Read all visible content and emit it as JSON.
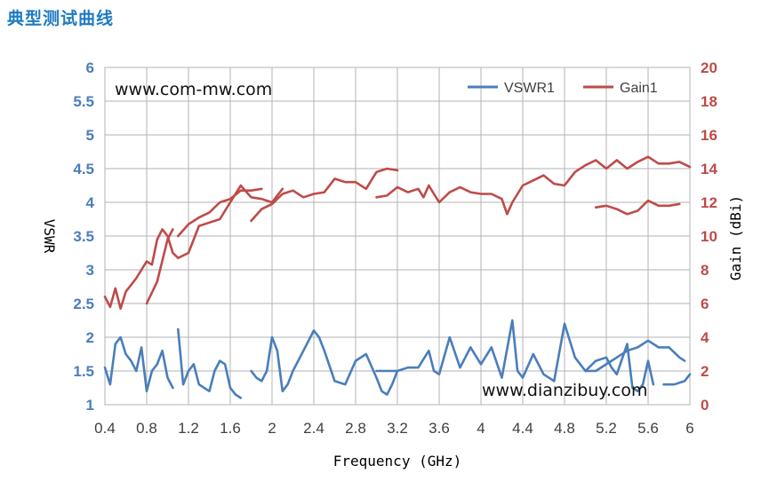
{
  "page": {
    "title": "典型测试曲线"
  },
  "chart_data": {
    "type": "line",
    "title": "",
    "xlabel": "Frequency (GHz)",
    "ylabel": "VSWR",
    "y2label": "Gain (dBi)",
    "xlim": [
      0.4,
      6
    ],
    "ylim": [
      1,
      6
    ],
    "y2lim": [
      0,
      20
    ],
    "x_ticks": [
      "0.4",
      "0.8",
      "1.2",
      "1.6",
      "2",
      "2.4",
      "2.8",
      "3.2",
      "3.6",
      "4",
      "4.4",
      "4.8",
      "5.2",
      "5.6",
      "6"
    ],
    "x_tick_values": [
      0.4,
      0.8,
      1.2,
      1.6,
      2.0,
      2.4,
      2.8,
      3.2,
      3.6,
      4.0,
      4.4,
      4.8,
      5.2,
      5.6,
      6.0
    ],
    "y_ticks": [
      "1",
      "1.5",
      "2",
      "2.5",
      "3",
      "3.5",
      "4",
      "4.5",
      "5",
      "5.5",
      "6"
    ],
    "y_tick_values": [
      1,
      1.5,
      2,
      2.5,
      3,
      3.5,
      4,
      4.5,
      5,
      5.5,
      6
    ],
    "y2_ticks": [
      "0",
      "2",
      "4",
      "6",
      "8",
      "10",
      "12",
      "14",
      "16",
      "18",
      "20"
    ],
    "y2_tick_values": [
      0,
      2,
      4,
      6,
      8,
      10,
      12,
      14,
      16,
      18,
      20
    ],
    "grid": true,
    "legend": {
      "position": "top-right",
      "entries": [
        "VSWR1",
        "Gain1"
      ]
    },
    "annotations": [
      "www.com-mw.com",
      "www.dianzibuy.com"
    ],
    "colors": {
      "VSWR1": "#4a7ebb",
      "Gain1": "#be4b48",
      "grid": "#b3b3b3"
    },
    "series": [
      {
        "name": "VSWR1",
        "axis": "left",
        "segments": [
          [
            [
              0.4,
              1.55
            ],
            [
              0.45,
              1.3
            ],
            [
              0.5,
              1.9
            ],
            [
              0.55,
              2.0
            ],
            [
              0.6,
              1.75
            ],
            [
              0.65,
              1.65
            ],
            [
              0.7,
              1.5
            ],
            [
              0.75,
              1.85
            ],
            [
              0.8,
              1.2
            ],
            [
              0.85,
              1.5
            ],
            [
              0.9,
              1.6
            ],
            [
              0.95,
              1.8
            ],
            [
              1.0,
              1.4
            ],
            [
              1.05,
              1.25
            ]
          ],
          [
            [
              1.1,
              2.12
            ],
            [
              1.15,
              1.3
            ],
            [
              1.2,
              1.5
            ],
            [
              1.25,
              1.6
            ],
            [
              1.3,
              1.3
            ],
            [
              1.35,
              1.25
            ],
            [
              1.4,
              1.2
            ],
            [
              1.45,
              1.5
            ],
            [
              1.5,
              1.65
            ],
            [
              1.55,
              1.6
            ],
            [
              1.6,
              1.25
            ],
            [
              1.65,
              1.15
            ],
            [
              1.7,
              1.1
            ]
          ],
          [
            [
              1.8,
              1.5
            ],
            [
              1.85,
              1.4
            ],
            [
              1.9,
              1.35
            ],
            [
              1.95,
              1.5
            ],
            [
              2.0,
              2.0
            ],
            [
              2.05,
              1.8
            ],
            [
              2.1,
              1.2
            ],
            [
              2.15,
              1.3
            ],
            [
              2.2,
              1.5
            ],
            [
              2.3,
              1.8
            ],
            [
              2.4,
              2.1
            ],
            [
              2.45,
              2.0
            ],
            [
              2.5,
              1.8
            ],
            [
              2.6,
              1.35
            ],
            [
              2.7,
              1.3
            ],
            [
              2.8,
              1.65
            ],
            [
              2.9,
              1.75
            ],
            [
              3.0,
              1.4
            ],
            [
              3.05,
              1.2
            ],
            [
              3.1,
              1.15
            ],
            [
              3.15,
              1.3
            ],
            [
              3.2,
              1.5
            ]
          ],
          [
            [
              3.0,
              1.5
            ],
            [
              3.1,
              1.5
            ],
            [
              3.2,
              1.5
            ],
            [
              3.3,
              1.55
            ],
            [
              3.4,
              1.55
            ],
            [
              3.5,
              1.8
            ],
            [
              3.55,
              1.5
            ],
            [
              3.6,
              1.45
            ],
            [
              3.7,
              2.0
            ],
            [
              3.8,
              1.55
            ],
            [
              3.9,
              1.85
            ],
            [
              4.0,
              1.6
            ],
            [
              4.1,
              1.85
            ],
            [
              4.2,
              1.4
            ],
            [
              4.3,
              2.25
            ],
            [
              4.35,
              1.5
            ],
            [
              4.4,
              1.4
            ],
            [
              4.5,
              1.75
            ],
            [
              4.6,
              1.45
            ],
            [
              4.7,
              1.35
            ],
            [
              4.8,
              2.2
            ],
            [
              4.9,
              1.7
            ],
            [
              5.0,
              1.5
            ],
            [
              5.1,
              1.65
            ],
            [
              5.2,
              1.7
            ],
            [
              5.25,
              1.55
            ],
            [
              5.3,
              1.45
            ],
            [
              5.4,
              1.9
            ],
            [
              5.45,
              1.25
            ],
            [
              5.5,
              1.2
            ],
            [
              5.55,
              1.3
            ],
            [
              5.6,
              1.65
            ],
            [
              5.65,
              1.3
            ]
          ],
          [
            [
              5.0,
              1.5
            ],
            [
              5.1,
              1.5
            ],
            [
              5.2,
              1.6
            ],
            [
              5.3,
              1.7
            ],
            [
              5.4,
              1.8
            ],
            [
              5.5,
              1.85
            ],
            [
              5.6,
              1.95
            ],
            [
              5.7,
              1.85
            ],
            [
              5.8,
              1.85
            ],
            [
              5.9,
              1.7
            ],
            [
              5.95,
              1.65
            ]
          ],
          [
            [
              5.75,
              1.3
            ],
            [
              5.85,
              1.3
            ],
            [
              5.95,
              1.35
            ],
            [
              6.0,
              1.45
            ]
          ]
        ]
      },
      {
        "name": "Gain1",
        "axis": "right",
        "segments": [
          [
            [
              0.4,
              6.4
            ],
            [
              0.45,
              5.8
            ],
            [
              0.5,
              6.9
            ],
            [
              0.55,
              5.7
            ],
            [
              0.6,
              6.7
            ],
            [
              0.7,
              7.5
            ],
            [
              0.8,
              8.5
            ],
            [
              0.85,
              8.3
            ],
            [
              0.9,
              9.8
            ],
            [
              0.95,
              10.4
            ],
            [
              1.0,
              10.0
            ],
            [
              1.05,
              9.0
            ],
            [
              1.1,
              8.7
            ],
            [
              1.2,
              9.0
            ],
            [
              1.3,
              10.6
            ],
            [
              1.4,
              10.8
            ],
            [
              1.5,
              11.0
            ],
            [
              1.55,
              11.5
            ],
            [
              1.6,
              12.0
            ],
            [
              1.7,
              13.0
            ],
            [
              1.8,
              12.3
            ],
            [
              1.9,
              12.2
            ],
            [
              2.0,
              12.0
            ],
            [
              2.05,
              12.4
            ],
            [
              2.1,
              12.8
            ]
          ],
          [
            [
              0.8,
              6.0
            ],
            [
              0.9,
              7.3
            ],
            [
              1.0,
              9.8
            ],
            [
              1.05,
              10.4
            ]
          ],
          [
            [
              1.1,
              10.0
            ],
            [
              1.2,
              10.7
            ],
            [
              1.3,
              11.1
            ],
            [
              1.4,
              11.4
            ],
            [
              1.5,
              12.0
            ],
            [
              1.6,
              12.2
            ],
            [
              1.7,
              12.7
            ],
            [
              1.8,
              12.7
            ],
            [
              1.9,
              12.8
            ]
          ],
          [
            [
              1.8,
              10.9
            ],
            [
              1.9,
              11.6
            ],
            [
              2.0,
              11.9
            ],
            [
              2.1,
              12.5
            ],
            [
              2.2,
              12.7
            ],
            [
              2.3,
              12.3
            ],
            [
              2.4,
              12.5
            ],
            [
              2.5,
              12.6
            ],
            [
              2.6,
              13.4
            ],
            [
              2.7,
              13.2
            ],
            [
              2.8,
              13.2
            ],
            [
              2.9,
              12.8
            ],
            [
              3.0,
              13.8
            ],
            [
              3.1,
              14.0
            ],
            [
              3.2,
              13.9
            ]
          ],
          [
            [
              3.0,
              12.3
            ],
            [
              3.1,
              12.4
            ],
            [
              3.2,
              12.9
            ],
            [
              3.3,
              12.6
            ],
            [
              3.4,
              12.8
            ],
            [
              3.45,
              12.3
            ],
            [
              3.5,
              13.0
            ],
            [
              3.55,
              12.5
            ],
            [
              3.6,
              12.0
            ],
            [
              3.7,
              12.6
            ],
            [
              3.8,
              12.9
            ],
            [
              3.9,
              12.6
            ],
            [
              4.0,
              12.5
            ],
            [
              4.1,
              12.5
            ],
            [
              4.2,
              12.2
            ],
            [
              4.25,
              11.3
            ],
            [
              4.3,
              12.0
            ],
            [
              4.4,
              13.0
            ],
            [
              4.5,
              13.3
            ],
            [
              4.6,
              13.6
            ],
            [
              4.7,
              13.1
            ],
            [
              4.8,
              13.0
            ],
            [
              4.9,
              13.8
            ],
            [
              5.0,
              14.2
            ],
            [
              5.1,
              14.5
            ],
            [
              5.2,
              14.0
            ],
            [
              5.3,
              14.5
            ],
            [
              5.4,
              14.0
            ],
            [
              5.5,
              14.4
            ],
            [
              5.6,
              14.7
            ],
            [
              5.7,
              14.3
            ],
            [
              5.8,
              14.3
            ],
            [
              5.9,
              14.4
            ],
            [
              6.0,
              14.1
            ]
          ],
          [
            [
              5.1,
              11.7
            ],
            [
              5.2,
              11.8
            ],
            [
              5.3,
              11.6
            ],
            [
              5.4,
              11.3
            ],
            [
              5.5,
              11.5
            ],
            [
              5.6,
              12.1
            ],
            [
              5.7,
              11.8
            ],
            [
              5.8,
              11.8
            ],
            [
              5.9,
              11.9
            ]
          ]
        ]
      }
    ]
  }
}
